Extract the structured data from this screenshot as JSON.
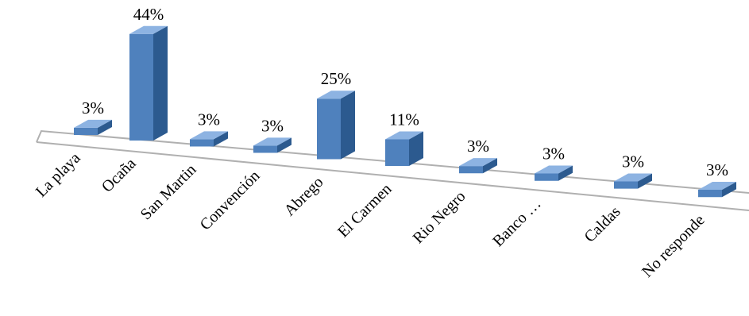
{
  "chart_data": {
    "type": "bar",
    "categories": [
      "La playa",
      "Ocaña",
      "San Martin",
      "Convención",
      "Abrego",
      "El Carmen",
      "Rio Negro",
      "Banco …",
      "Caldas",
      "No responde"
    ],
    "values": [
      3,
      44,
      3,
      3,
      25,
      11,
      3,
      3,
      3,
      3
    ],
    "data_labels": [
      "3%",
      "44%",
      "3%",
      "3%",
      "25%",
      "11%",
      "3%",
      "3%",
      "3%",
      "3%"
    ],
    "unit": "%",
    "style": "3d-column",
    "grid": false,
    "legend": "none",
    "colors": {
      "bar_front": "#4f81bd",
      "bar_side": "#2c5a8f",
      "bar_top": "#8db3e2",
      "floor_line": "#b0b0b0"
    }
  }
}
